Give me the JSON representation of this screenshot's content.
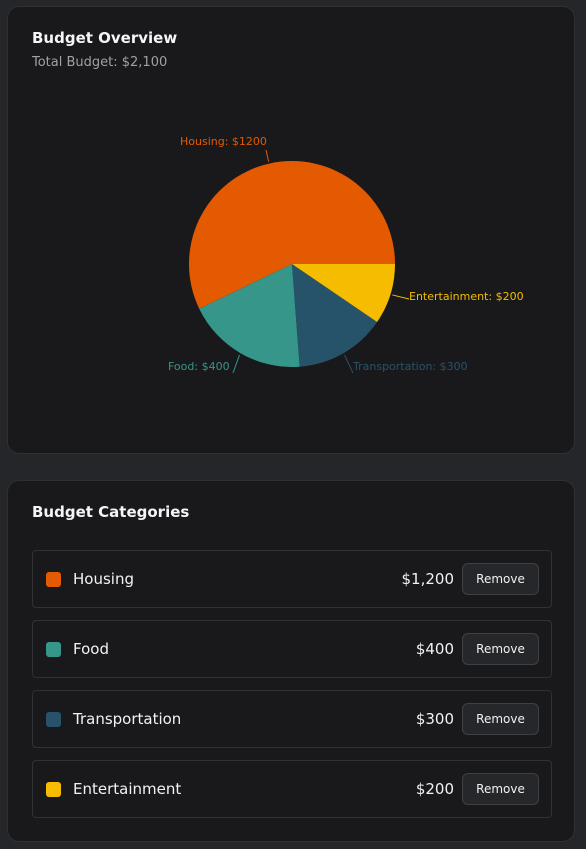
{
  "overview": {
    "title": "Budget Overview",
    "subtitle": "Total Budget: $2,100"
  },
  "chart_data": {
    "type": "pie",
    "categories": [
      "Housing",
      "Food",
      "Transportation",
      "Entertainment"
    ],
    "values": [
      1200,
      400,
      300,
      200
    ],
    "labels": [
      "Housing: $1200",
      "Food: $400",
      "Transportation: $300",
      "Entertainment: $200"
    ],
    "colors": [
      "#e35a00",
      "#36968a",
      "#27536a",
      "#f5bc00"
    ]
  },
  "categories": {
    "title": "Budget Categories",
    "remove_label": "Remove",
    "items": [
      {
        "name": "Housing",
        "amount": "$1,200",
        "color": "#e35a00"
      },
      {
        "name": "Food",
        "amount": "$400",
        "color": "#36968a"
      },
      {
        "name": "Transportation",
        "amount": "$300",
        "color": "#27536a"
      },
      {
        "name": "Entertainment",
        "amount": "$200",
        "color": "#f5bc00"
      }
    ]
  }
}
